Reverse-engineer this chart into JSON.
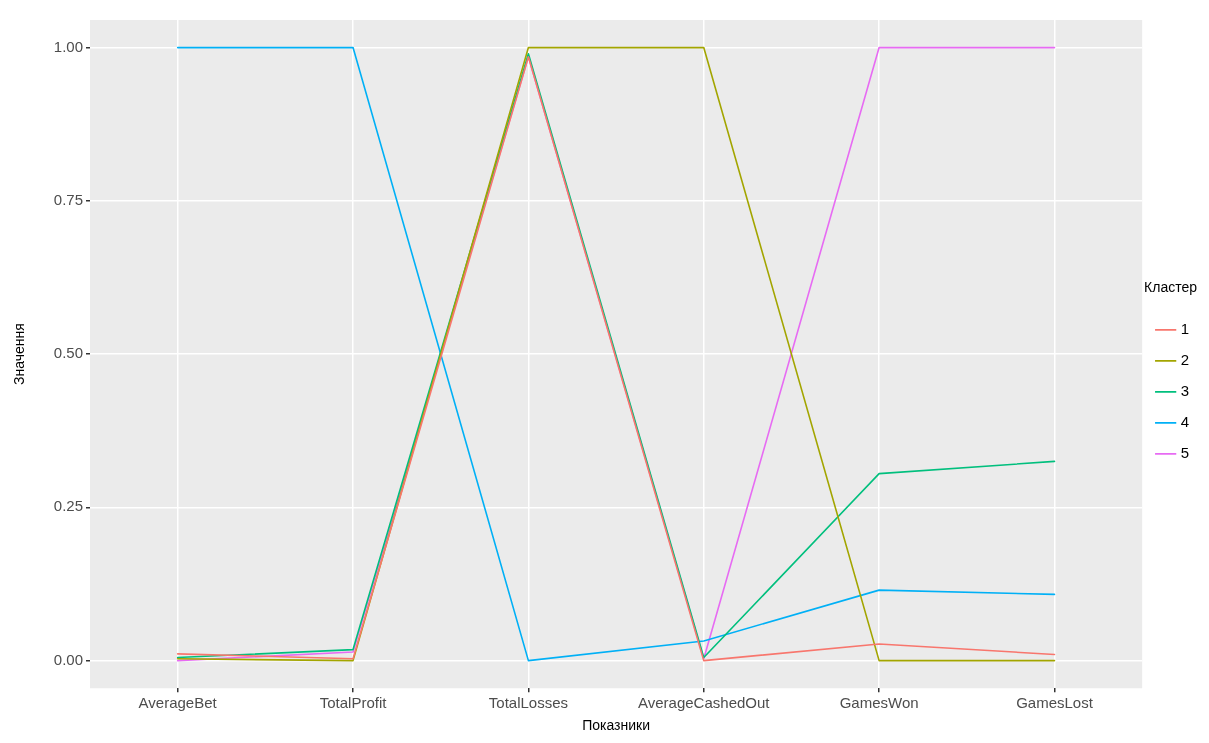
{
  "chart_data": {
    "type": "line",
    "xlabel": "Показники",
    "ylabel": "Значення",
    "legend_title": "Кластер",
    "categories": [
      "AverageBet",
      "TotalProfit",
      "TotalLosses",
      "AverageCashedOut",
      "GamesWon",
      "GamesLost"
    ],
    "series": [
      {
        "name": "1",
        "color": "#f8766d",
        "values": [
          0.011,
          0.003,
          0.985,
          0,
          0.027,
          0.01
        ]
      },
      {
        "name": "2",
        "color": "#a3a500",
        "values": [
          0.003,
          0,
          1,
          1,
          0,
          0
        ]
      },
      {
        "name": "3",
        "color": "#00bf7d",
        "values": [
          0.005,
          0.018,
          0.99,
          0.005,
          0.305,
          0.325
        ]
      },
      {
        "name": "4",
        "color": "#00b0f6",
        "values": [
          1,
          1,
          0,
          0.032,
          0.115,
          0.108
        ]
      },
      {
        "name": "5",
        "color": "#e76bf3",
        "values": [
          0,
          0.014,
          0.985,
          0.003,
          1,
          1
        ]
      }
    ],
    "ylim": [
      -0.045,
      1.045
    ],
    "yticks": [
      {
        "value": 0,
        "label": "0.00"
      },
      {
        "value": 0.25,
        "label": "0.25"
      },
      {
        "value": 0.5,
        "label": "0.50"
      },
      {
        "value": 0.75,
        "label": "0.75"
      },
      {
        "value": 1,
        "label": "1.00"
      }
    ],
    "grid": true,
    "legend": "right",
    "marker": "none",
    "line_style": "solid"
  }
}
